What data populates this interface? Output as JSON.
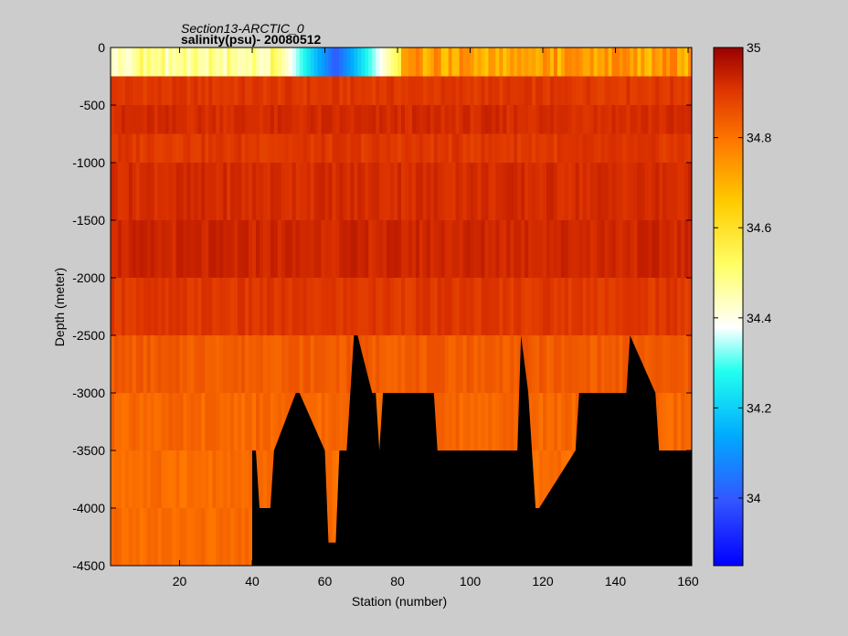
{
  "chart_data": {
    "type": "heatmap",
    "title": "Section13-ARCTIC_0",
    "subtitle": "salinity(psu)- 20080512",
    "xlabel": "Station (number)",
    "ylabel": "Depth (meter)",
    "xlim": [
      1,
      161
    ],
    "ylim": [
      -4500,
      0
    ],
    "xticks": [
      "20",
      "40",
      "60",
      "80",
      "100",
      "120",
      "140",
      "160"
    ],
    "yticks": [
      "0",
      "-500",
      "-1000",
      "-1500",
      "-2000",
      "-2500",
      "-3000",
      "-3500",
      "-4000",
      "-4500"
    ],
    "colorbar": {
      "range": [
        33.85,
        35
      ],
      "ticks": [
        "35",
        "34.8",
        "34.6",
        "34.4",
        "34.2",
        "34"
      ],
      "colormap": "jet"
    },
    "depth_levels": [
      0,
      -250,
      -500,
      -750,
      -1000,
      -1500,
      -2000,
      -2500,
      -3000,
      -3500,
      -4000
    ],
    "salinity_profile": [
      34.55,
      34.9,
      34.92,
      34.9,
      34.92,
      34.93,
      34.9,
      34.84,
      34.82,
      34.81,
      34.81
    ],
    "surface_fresh_stations": [
      45,
      80
    ],
    "bottom_depth": {
      "stations": [
        40,
        41,
        42,
        45,
        46,
        52,
        53,
        60,
        61,
        63,
        64,
        66,
        67,
        68,
        69,
        73,
        74,
        75,
        76,
        90,
        91,
        97,
        98,
        113,
        114,
        116,
        117,
        118,
        119,
        129,
        130,
        143,
        144,
        151,
        152,
        161
      ],
      "depths": [
        -3500,
        -3500,
        -4000,
        -4000,
        -3500,
        -3000,
        -3000,
        -3500,
        -4300,
        -4300,
        -3500,
        -3500,
        -3000,
        -2500,
        -2500,
        -3000,
        -3000,
        -3500,
        -3000,
        -3000,
        -3500,
        -3500,
        -3500,
        -3500,
        -2500,
        -3000,
        -3500,
        -4000,
        -4000,
        -3500,
        -3000,
        -3000,
        -2500,
        -3000,
        -3500,
        -3500
      ]
    }
  }
}
